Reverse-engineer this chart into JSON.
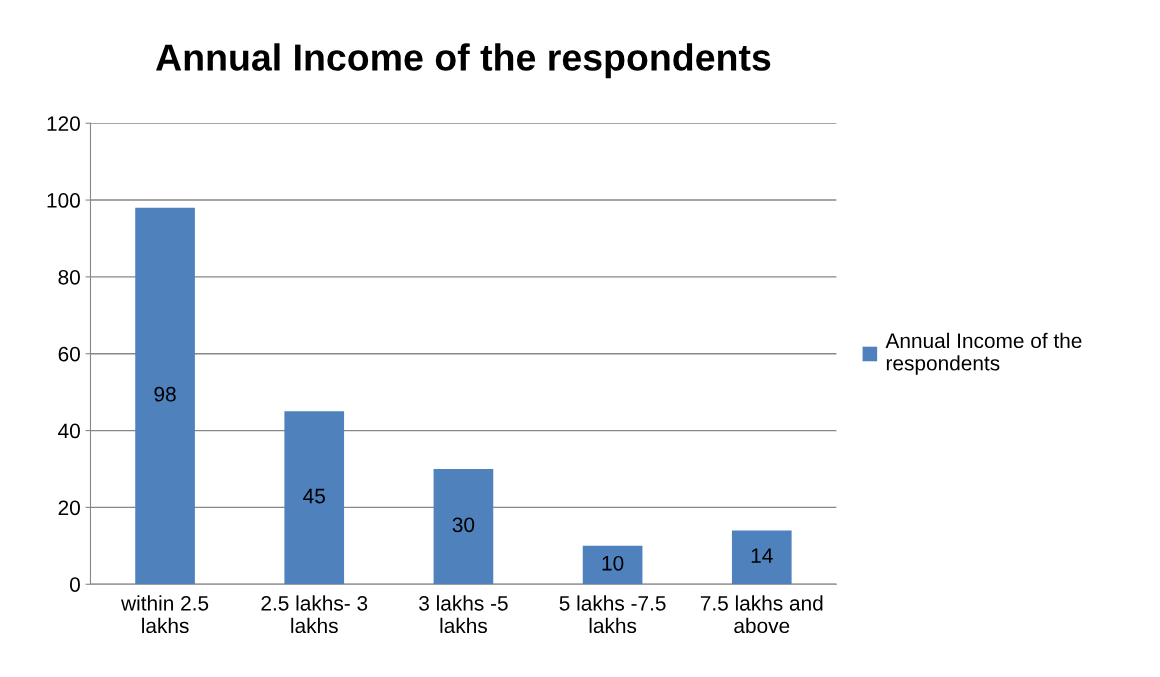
{
  "chart_data": {
    "type": "bar",
    "title": "Annual Income of the respondents",
    "categories": [
      "within 2.5\nlakhs",
      "2.5 lakhs- 3\nlakhs",
      "3 lakhs -5\nlakhs",
      "5 lakhs -7.5\nlakhs",
      "7.5 lakhs and\nabove"
    ],
    "series": [
      {
        "name": "Annual Income of the\nrespondents",
        "color": "#4f81bd",
        "values": [
          98,
          45,
          30,
          10,
          14
        ]
      }
    ],
    "ylim": [
      0,
      120
    ],
    "yticks": [
      0,
      20,
      40,
      60,
      80,
      100,
      120
    ],
    "grid": "y",
    "legend": "right",
    "data_labels": true
  }
}
